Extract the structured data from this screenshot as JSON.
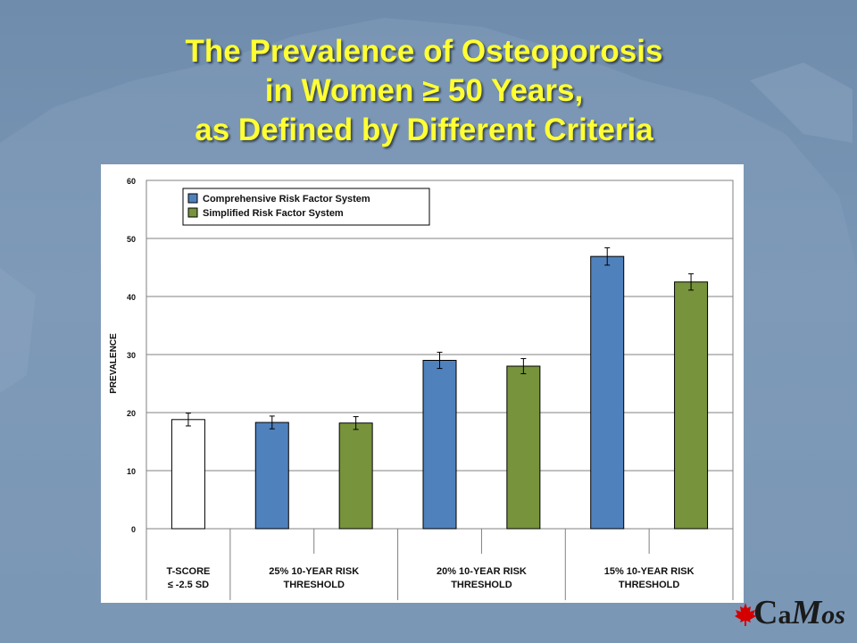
{
  "slide": {
    "title_lines": [
      "The Prevalence of Osteoporosis",
      "in Women ≥ 50 Years,",
      "as Defined by Different Criteria"
    ],
    "title_color": "#ffff33",
    "background_color": "#7b97b6",
    "logo": {
      "c": "C",
      "a": "a",
      "m": "M",
      "os": "os",
      "icon": "maple-leaf-icon",
      "icon_color": "#d40000"
    }
  },
  "chart_data": {
    "type": "bar",
    "ylabel": "PREVALENCE",
    "ylim": [
      0,
      60
    ],
    "yticks": [
      0,
      10,
      20,
      30,
      40,
      50,
      60
    ],
    "grid": true,
    "legend": {
      "placement": "top-left",
      "entries": [
        {
          "label": "Comprehensive Risk Factor System",
          "color": "#4f81bd"
        },
        {
          "label": "Simplified Risk Factor System",
          "color": "#77933c"
        }
      ]
    },
    "groups": [
      {
        "label_lines": [
          "T-SCORE",
          "≤ -2.5 SD"
        ]
      },
      {
        "label_lines": [
          "25% 10-YEAR RISK",
          "THRESHOLD"
        ]
      },
      {
        "label_lines": [
          "20% 10-YEAR RISK",
          "THRESHOLD"
        ]
      },
      {
        "label_lines": [
          "15% 10-YEAR RISK",
          "THRESHOLD"
        ]
      }
    ],
    "bars": [
      {
        "group": 0,
        "system": "T-score",
        "value": 18.8,
        "error": 1.1,
        "color": "#ffffff"
      },
      {
        "group": 1,
        "system": "Comprehensive Risk Factor System",
        "value": 18.3,
        "error": 1.1,
        "color": "#4f81bd"
      },
      {
        "group": 1,
        "system": "Simplified Risk Factor System",
        "value": 18.2,
        "error": 1.1,
        "color": "#77933c"
      },
      {
        "group": 2,
        "system": "Comprehensive Risk Factor System",
        "value": 29.0,
        "error": 1.4,
        "color": "#4f81bd"
      },
      {
        "group": 2,
        "system": "Simplified Risk Factor System",
        "value": 28.0,
        "error": 1.3,
        "color": "#77933c"
      },
      {
        "group": 3,
        "system": "Comprehensive Risk Factor System",
        "value": 46.9,
        "error": 1.5,
        "color": "#4f81bd"
      },
      {
        "group": 3,
        "system": "Simplified Risk Factor System",
        "value": 42.5,
        "error": 1.4,
        "color": "#77933c"
      }
    ]
  }
}
